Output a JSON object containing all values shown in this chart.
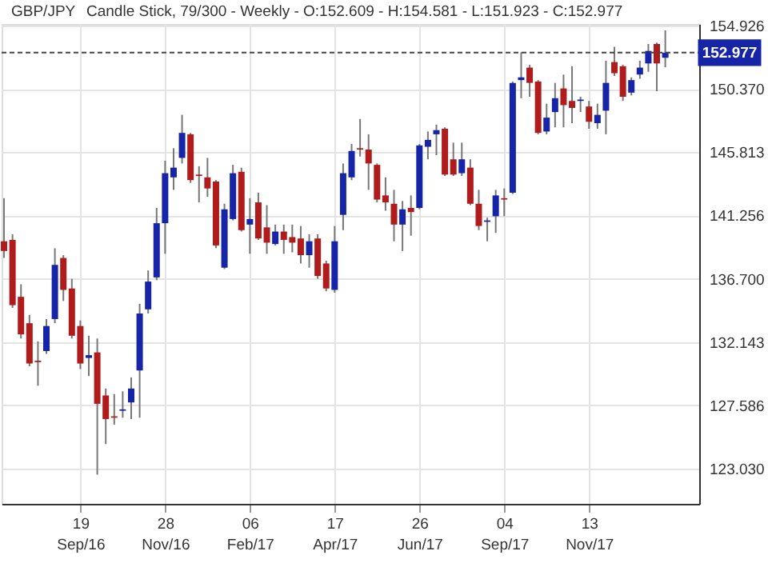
{
  "chart_data": {
    "type": "candlestick",
    "title": "GBP/JPY",
    "subtitle": "Candle Stick, 79/300 - Weekly - O:152.609 - H:154.581 - L:151.923 - C:152.977",
    "x": [
      "2016-07-18",
      "2016-07-25",
      "2016-08-01",
      "2016-08-08",
      "2016-08-15",
      "2016-08-22",
      "2016-08-29",
      "2016-09-05",
      "2016-09-12",
      "2016-09-19",
      "2016-09-26",
      "2016-10-03",
      "2016-10-10",
      "2016-10-17",
      "2016-10-24",
      "2016-10-31",
      "2016-11-07",
      "2016-11-14",
      "2016-11-21",
      "2016-11-28",
      "2016-12-05",
      "2016-12-12",
      "2016-12-19",
      "2016-12-26",
      "2017-01-02",
      "2017-01-09",
      "2017-01-16",
      "2017-01-23",
      "2017-01-30",
      "2017-02-06",
      "2017-02-13",
      "2017-02-20",
      "2017-02-27",
      "2017-03-06",
      "2017-03-13",
      "2017-03-20",
      "2017-03-27",
      "2017-04-03",
      "2017-04-10",
      "2017-04-17",
      "2017-04-24",
      "2017-05-01",
      "2017-05-08",
      "2017-05-15",
      "2017-05-22",
      "2017-05-29",
      "2017-06-05",
      "2017-06-12",
      "2017-06-19",
      "2017-06-26",
      "2017-07-03",
      "2017-07-10",
      "2017-07-17",
      "2017-07-24",
      "2017-07-31",
      "2017-08-07",
      "2017-08-14",
      "2017-08-21",
      "2017-08-28",
      "2017-09-04",
      "2017-09-11",
      "2017-09-18",
      "2017-09-25",
      "2017-10-02",
      "2017-10-09",
      "2017-10-16",
      "2017-10-23",
      "2017-10-30",
      "2017-11-06",
      "2017-11-13",
      "2017-11-20",
      "2017-11-27",
      "2017-12-04",
      "2017-12-11",
      "2017-12-18",
      "2017-12-25",
      "2018-01-01",
      "2018-01-08",
      "2018-01-15"
    ],
    "ohlc": [
      [
        139.4,
        142.5,
        138.2,
        138.7
      ],
      [
        139.5,
        139.9,
        134.6,
        134.8
      ],
      [
        135.4,
        136.3,
        132.4,
        132.7
      ],
      [
        133.5,
        134.1,
        130.4,
        130.6
      ],
      [
        130.8,
        132.2,
        129.0,
        130.7
      ],
      [
        131.5,
        133.8,
        131.3,
        133.3
      ],
      [
        133.8,
        138.9,
        133.5,
        137.7
      ],
      [
        138.2,
        138.4,
        135.1,
        135.9
      ],
      [
        136.0,
        136.7,
        132.4,
        132.6
      ],
      [
        133.3,
        133.7,
        130.2,
        130.6
      ],
      [
        131.0,
        132.6,
        129.7,
        131.2
      ],
      [
        131.4,
        132.4,
        122.6,
        127.7
      ],
      [
        128.3,
        128.8,
        124.8,
        126.6
      ],
      [
        126.8,
        128.4,
        126.2,
        126.7
      ],
      [
        127.2,
        128.6,
        126.7,
        127.3
      ],
      [
        127.8,
        129.6,
        126.6,
        128.8
      ],
      [
        130.1,
        134.9,
        126.7,
        134.2
      ],
      [
        134.5,
        137.3,
        134.2,
        136.5
      ],
      [
        136.8,
        141.8,
        136.6,
        140.7
      ],
      [
        140.7,
        145.2,
        138.5,
        144.3
      ],
      [
        144.0,
        146.1,
        143.1,
        144.7
      ],
      [
        145.4,
        148.5,
        145.0,
        147.2
      ],
      [
        147.1,
        147.2,
        143.6,
        143.8
      ],
      [
        144.2,
        144.8,
        142.2,
        144.1
      ],
      [
        144.0,
        145.4,
        142.6,
        143.2
      ],
      [
        143.7,
        143.8,
        138.9,
        139.1
      ],
      [
        137.5,
        142.1,
        137.4,
        141.7
      ],
      [
        141.0,
        144.9,
        140.9,
        144.3
      ],
      [
        144.4,
        144.7,
        140.1,
        140.2
      ],
      [
        140.6,
        142.5,
        138.5,
        141.0
      ],
      [
        142.2,
        142.9,
        139.5,
        139.6
      ],
      [
        140.4,
        142.0,
        138.5,
        139.3
      ],
      [
        139.2,
        140.6,
        139.1,
        140.1
      ],
      [
        140.1,
        140.6,
        138.5,
        139.5
      ],
      [
        139.7,
        140.6,
        138.6,
        139.3
      ],
      [
        139.6,
        140.5,
        137.8,
        138.4
      ],
      [
        138.4,
        139.9,
        137.5,
        139.4
      ],
      [
        139.6,
        139.9,
        136.7,
        136.9
      ],
      [
        137.8,
        138.0,
        135.8,
        136.0
      ],
      [
        135.9,
        140.5,
        135.7,
        139.4
      ],
      [
        141.3,
        145.0,
        140.2,
        144.3
      ],
      [
        144.0,
        146.4,
        143.8,
        145.9
      ],
      [
        146.1,
        148.2,
        145.5,
        146.0
      ],
      [
        146.0,
        147.1,
        143.1,
        145.0
      ],
      [
        144.9,
        145.0,
        142.2,
        142.4
      ],
      [
        142.7,
        144.0,
        141.6,
        142.2
      ],
      [
        142.1,
        143.1,
        139.4,
        140.6
      ],
      [
        140.6,
        142.3,
        138.7,
        141.7
      ],
      [
        141.8,
        142.7,
        139.8,
        141.5
      ],
      [
        141.8,
        146.4,
        141.7,
        146.3
      ],
      [
        146.2,
        147.3,
        145.3,
        146.7
      ],
      [
        147.1,
        147.8,
        145.6,
        147.4
      ],
      [
        147.5,
        147.6,
        144.1,
        144.2
      ],
      [
        145.3,
        146.5,
        144.1,
        144.2
      ],
      [
        144.3,
        146.5,
        144.1,
        145.3
      ],
      [
        144.7,
        145.3,
        142.0,
        142.1
      ],
      [
        142.1,
        143.1,
        140.2,
        140.5
      ],
      [
        140.8,
        141.1,
        139.4,
        140.9
      ],
      [
        141.2,
        143.1,
        140.0,
        142.7
      ],
      [
        142.5,
        143.2,
        141.2,
        142.4
      ],
      [
        142.9,
        150.9,
        142.8,
        150.8
      ],
      [
        151.0,
        153.0,
        149.7,
        151.2
      ],
      [
        151.9,
        152.1,
        149.8,
        150.8
      ],
      [
        150.9,
        151.0,
        147.1,
        147.2
      ],
      [
        147.3,
        149.3,
        147.1,
        148.3
      ],
      [
        148.7,
        150.8,
        147.6,
        149.7
      ],
      [
        150.4,
        151.4,
        147.6,
        149.2
      ],
      [
        149.5,
        152.0,
        147.9,
        149.0
      ],
      [
        149.5,
        149.8,
        148.7,
        149.6
      ],
      [
        149.1,
        149.5,
        147.5,
        148.0
      ],
      [
        147.9,
        149.3,
        147.5,
        148.5
      ],
      [
        148.8,
        152.4,
        147.1,
        150.8
      ],
      [
        152.3,
        153.4,
        151.3,
        151.5
      ],
      [
        152.0,
        152.1,
        149.5,
        149.8
      ],
      [
        150.1,
        151.2,
        149.9,
        151.0
      ],
      [
        151.4,
        152.4,
        151.1,
        151.9
      ],
      [
        152.2,
        153.6,
        151.6,
        153.1
      ],
      [
        153.6,
        153.7,
        150.2,
        152.2
      ],
      [
        152.609,
        154.581,
        151.923,
        152.977
      ]
    ],
    "colors": [
      "#b01c1c",
      "#b01c1c",
      "#b01c1c",
      "#b01c1c",
      "#b01c1c",
      "#1624a8",
      "#1624a8",
      "#b01c1c",
      "#b01c1c",
      "#b01c1c",
      "#1624a8",
      "#b01c1c",
      "#b01c1c",
      "#b01c1c",
      "#1624a8",
      "#1624a8",
      "#1624a8",
      "#1624a8",
      "#1624a8",
      "#1624a8",
      "#1624a8",
      "#1624a8",
      "#b01c1c",
      "#b01c1c",
      "#b01c1c",
      "#b01c1c",
      "#1624a8",
      "#1624a8",
      "#b01c1c",
      "#1624a8",
      "#b01c1c",
      "#b01c1c",
      "#1624a8",
      "#b01c1c",
      "#b01c1c",
      "#b01c1c",
      "#1624a8",
      "#b01c1c",
      "#b01c1c",
      "#1624a8",
      "#1624a8",
      "#1624a8",
      "#b01c1c",
      "#b01c1c",
      "#b01c1c",
      "#b01c1c",
      "#b01c1c",
      "#1624a8",
      "#b01c1c",
      "#1624a8",
      "#1624a8",
      "#1624a8",
      "#b01c1c",
      "#b01c1c",
      "#1624a8",
      "#b01c1c",
      "#b01c1c",
      "#1624a8",
      "#1624a8",
      "#b01c1c",
      "#1624a8",
      "#1624a8",
      "#b01c1c",
      "#b01c1c",
      "#1624a8",
      "#1624a8",
      "#b01c1c",
      "#b01c1c",
      "#1624a8",
      "#b01c1c",
      "#1624a8",
      "#1624a8",
      "#b01c1c",
      "#b01c1c",
      "#1624a8",
      "#1624a8",
      "#1624a8",
      "#b01c1c",
      "#1624a8"
    ],
    "xlim": [
      "2016-07-16",
      "2018-02-12"
    ],
    "xticks": [
      {
        "value": "2016-09-19",
        "label": "19\nSep/16"
      },
      {
        "value": "2016-11-28",
        "label": "28\nNov/16"
      },
      {
        "value": "2017-02-06",
        "label": "06\nFeb/17"
      },
      {
        "value": "2017-04-17",
        "label": "17\nApr/17"
      },
      {
        "value": "2017-06-26",
        "label": "26\nJun/17"
      },
      {
        "value": "2017-09-04",
        "label": "04\nSep/17"
      },
      {
        "value": "2017-11-13",
        "label": "13\nNov/17"
      }
    ],
    "ylim": [
      120.5,
      155.04
    ],
    "yticks": [
      {
        "value": 123.03,
        "label": "123.030"
      },
      {
        "value": 127.586,
        "label": "127.586"
      },
      {
        "value": 132.143,
        "label": "132.143"
      },
      {
        "value": 136.7,
        "label": "136.700"
      },
      {
        "value": 141.256,
        "label": "141.256"
      },
      {
        "value": 145.813,
        "label": "145.813"
      },
      {
        "value": 150.37,
        "label": "150.370"
      },
      {
        "value": 154.926,
        "label": "154.926"
      }
    ],
    "grid": true,
    "ref_lines": [
      {
        "axis": "y",
        "value": 152.977,
        "label": "152.977",
        "color": "#444444",
        "line_style": "dashed"
      }
    ]
  }
}
